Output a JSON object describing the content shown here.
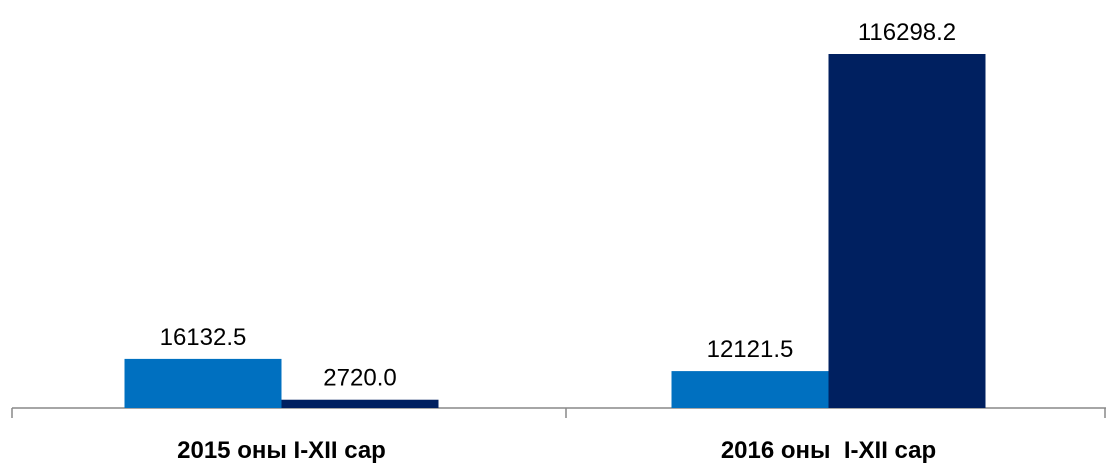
{
  "chart_data": {
    "type": "bar",
    "categories": [
      "2015 оны I-XII сар",
      "2016 оны  I-XII сар"
    ],
    "series": [
      {
        "color": "#0070c0",
        "values": [
          16132.5,
          12121.5
        ],
        "value_labels": [
          "16132.5",
          "12121.5"
        ]
      },
      {
        "color": "#002060",
        "values": [
          2720,
          116298.2
        ],
        "value_labels": [
          "2720.0",
          "116298.2"
        ]
      }
    ]
  }
}
